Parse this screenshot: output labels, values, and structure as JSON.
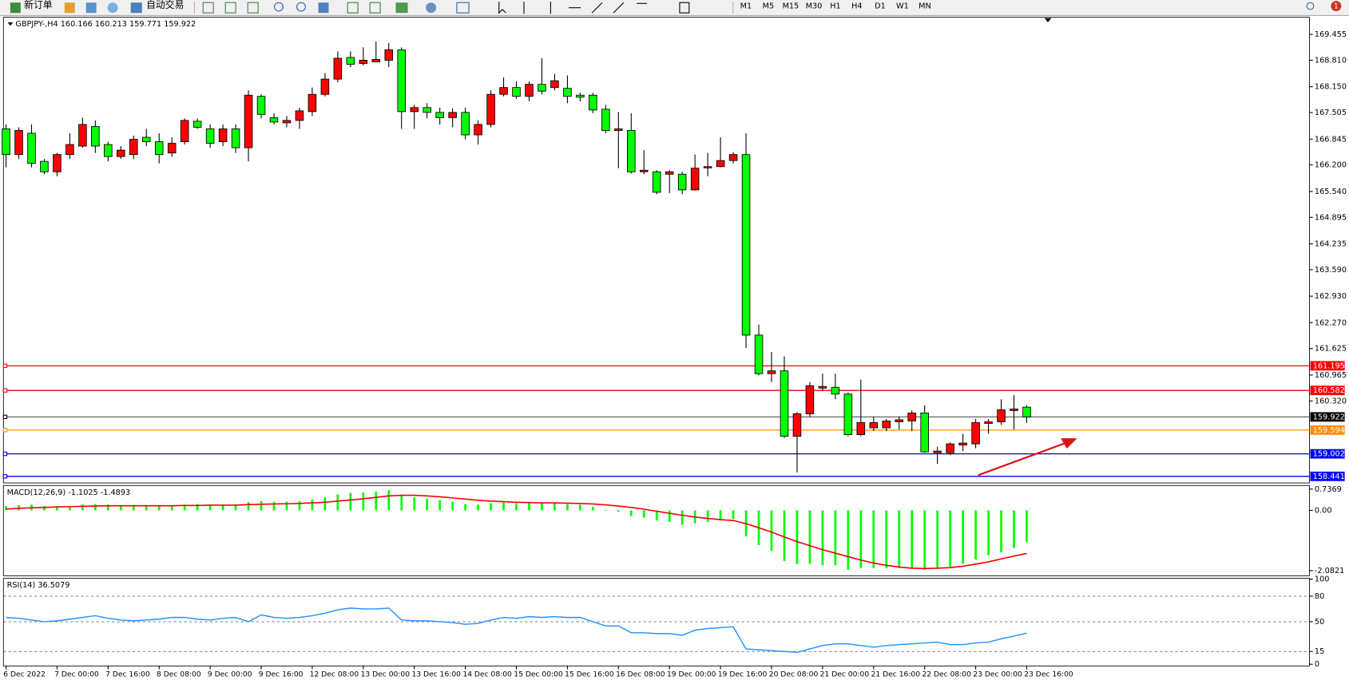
{
  "toolbar": {
    "new_order": "新订单",
    "auto_trading": "自动交易",
    "timeframes": [
      "M1",
      "M5",
      "M15",
      "M30",
      "H1",
      "H4",
      "D1",
      "W1",
      "MN"
    ],
    "badge": "1"
  },
  "chart_data": [
    {
      "type": "candlestick",
      "title": "GBPJPY-,H4  160.166 160.213 159.771 159.922",
      "categories": [
        "6 Dec 2022",
        null,
        null,
        null,
        "7 Dec 00:00",
        null,
        null,
        null,
        "7 Dec 16:00",
        null,
        null,
        null,
        "8 Dec 08:00",
        null,
        null,
        null,
        "9 Dec 00:00",
        null,
        null,
        null,
        "9 Dec 16:00",
        null,
        null,
        null,
        "12 Dec 08:00",
        null,
        null,
        null,
        "13 Dec 00:00",
        null,
        null,
        null,
        "13 Dec 16:00",
        null,
        null,
        null,
        "14 Dec 08:00",
        null,
        null,
        null,
        "15 Dec 00:00",
        null,
        null,
        null,
        "15 Dec 16:00",
        null,
        null,
        null,
        "16 Dec 08:00",
        null,
        null,
        null,
        "19 Dec 00:00",
        null,
        null,
        null,
        "19 Dec 16:00",
        null,
        null,
        null,
        "20 Dec 08:00",
        null,
        null,
        null,
        "21 Dec 00:00",
        null,
        null,
        null,
        "21 Dec 16:00",
        null,
        null,
        null,
        "22 Dec 08:00",
        null,
        null,
        null,
        "23 Dec 00:00",
        null,
        null,
        null,
        "23 Dec 16:00"
      ],
      "open": [
        167.1,
        166.46,
        166.99,
        166.29,
        166.03,
        166.46,
        166.67,
        167.16,
        166.71,
        166.41,
        166.46,
        166.89,
        166.78,
        166.5,
        166.78,
        167.29,
        167.1,
        166.78,
        167.1,
        166.63,
        167.91,
        167.38,
        167.25,
        167.31,
        167.53,
        167.96,
        168.34,
        168.88,
        168.73,
        168.77,
        168.81,
        169.07,
        167.53,
        167.63,
        167.51,
        167.38,
        167.51,
        166.95,
        167.21,
        167.96,
        168.13,
        167.91,
        168.21,
        168.13,
        168.11,
        167.94,
        167.94,
        167.59,
        167.06,
        167.06,
        166.03,
        166.03,
        165.97,
        165.97,
        165.58,
        166.14,
        166.16,
        166.31,
        166.46,
        161.96,
        161.0,
        161.07,
        159.44,
        160.0,
        160.64,
        160.66,
        160.49,
        159.48,
        159.65,
        159.65,
        159.8,
        159.82,
        160.02,
        159.03,
        159.03,
        159.22,
        159.25,
        159.76,
        159.8,
        160.08,
        160.166
      ],
      "high": [
        167.21,
        167.14,
        167.21,
        166.35,
        166.5,
        166.99,
        167.38,
        167.31,
        166.78,
        166.67,
        166.93,
        167.1,
        166.99,
        166.89,
        167.36,
        167.36,
        167.21,
        167.21,
        167.21,
        168.06,
        167.96,
        167.49,
        167.42,
        167.63,
        168.13,
        168.49,
        169.03,
        169.03,
        169.13,
        169.28,
        169.24,
        169.13,
        167.7,
        167.74,
        167.63,
        167.61,
        167.63,
        167.31,
        168.06,
        168.38,
        168.28,
        168.28,
        168.86,
        168.47,
        168.43,
        168.0,
        168.0,
        167.7,
        167.52,
        167.49,
        166.57,
        166.07,
        166.07,
        166.03,
        166.46,
        166.5,
        166.89,
        166.52,
        166.99,
        162.22,
        161.54,
        161.43,
        160.04,
        160.79,
        161.0,
        161.0,
        160.53,
        160.85,
        159.93,
        159.87,
        159.93,
        160.08,
        160.21,
        159.18,
        159.29,
        159.5,
        159.87,
        159.87,
        160.36,
        160.47,
        160.213
      ],
      "low": [
        166.14,
        166.35,
        166.14,
        165.97,
        165.92,
        166.35,
        166.63,
        166.5,
        166.29,
        166.35,
        166.35,
        166.67,
        166.24,
        166.41,
        166.71,
        167.1,
        166.63,
        166.67,
        166.5,
        166.29,
        167.36,
        167.21,
        167.14,
        167.1,
        167.42,
        167.91,
        168.26,
        168.64,
        168.68,
        168.77,
        168.64,
        167.1,
        167.1,
        167.36,
        167.21,
        167.14,
        166.84,
        166.71,
        167.14,
        167.91,
        167.85,
        167.79,
        167.96,
        168.06,
        167.74,
        167.79,
        167.49,
        166.99,
        166.12,
        165.99,
        165.97,
        165.47,
        165.5,
        165.47,
        165.56,
        165.92,
        166.14,
        166.24,
        161.64,
        160.96,
        160.79,
        159.4,
        158.54,
        159.93,
        160.57,
        160.36,
        159.44,
        159.44,
        159.57,
        159.57,
        159.61,
        159.57,
        159.03,
        158.75,
        158.97,
        159.07,
        159.14,
        159.5,
        159.72,
        159.61,
        159.771
      ],
      "close": [
        166.46,
        167.06,
        166.24,
        166.03,
        166.46,
        166.71,
        167.21,
        166.67,
        166.41,
        166.57,
        166.84,
        166.78,
        166.46,
        166.74,
        167.31,
        167.14,
        166.74,
        167.1,
        166.63,
        167.94,
        167.46,
        167.27,
        167.31,
        167.55,
        167.96,
        168.34,
        168.86,
        168.71,
        168.81,
        168.83,
        169.07,
        167.53,
        167.63,
        167.51,
        167.38,
        167.51,
        166.95,
        167.21,
        167.96,
        168.13,
        167.91,
        168.21,
        168.04,
        168.3,
        167.91,
        167.89,
        167.57,
        167.06,
        167.1,
        166.03,
        166.07,
        165.52,
        166.03,
        165.58,
        166.12,
        166.16,
        166.31,
        166.46,
        161.96,
        161.0,
        161.07,
        159.44,
        160.0,
        160.7,
        160.68,
        160.49,
        159.48,
        159.78,
        159.78,
        159.82,
        159.85,
        160.02,
        159.05,
        159.07,
        159.25,
        159.27,
        159.78,
        159.8,
        160.1,
        160.12,
        159.922
      ],
      "up_color": "#ff0000",
      "down_color": "#00ff00",
      "ylim": [
        158.277,
        169.883
      ],
      "yticks": [
        169.455,
        {
          "value": 168.81,
          "label": "168.810"
        },
        {
          "value": 168.15,
          "label": "168.150"
        },
        167.505,
        166.845,
        {
          "value": 166.2,
          "label": "166.200"
        },
        {
          "value": 165.54,
          "label": "165.540"
        },
        164.895,
        164.235,
        {
          "value": 163.59,
          "label": "163.590"
        },
        {
          "value": 162.93,
          "label": "162.930"
        },
        {
          "value": 162.27,
          "label": "162.270"
        },
        161.625,
        160.965,
        {
          "value": 160.32,
          "label": "160.320"
        }
      ],
      "levels": [
        {
          "value": 161.195,
          "color": "#ff0000"
        },
        {
          "value": 160.582,
          "color": "#ff0000"
        },
        {
          "value": 159.922,
          "color": "#000000"
        },
        {
          "value": 159.594,
          "color": "#ff8c00"
        },
        {
          "value": 159.002,
          "color": "#0000ff"
        },
        {
          "value": 158.441,
          "color": "#0000ff"
        }
      ]
    },
    {
      "type": "macd",
      "title": "MACD(12,26,9) -1.1025 -1.4893",
      "histogram": {
        "color": "#00ff00",
        "values": [
          0.15,
          0.18,
          0.2,
          0.15,
          0.12,
          0.15,
          0.2,
          0.22,
          0.2,
          0.18,
          0.18,
          0.18,
          0.15,
          0.15,
          0.2,
          0.22,
          0.2,
          0.2,
          0.18,
          0.28,
          0.32,
          0.3,
          0.3,
          0.32,
          0.38,
          0.45,
          0.55,
          0.6,
          0.62,
          0.65,
          0.7,
          0.52,
          0.45,
          0.4,
          0.35,
          0.3,
          0.22,
          0.2,
          0.25,
          0.28,
          0.25,
          0.25,
          0.25,
          0.25,
          0.22,
          0.2,
          0.12,
          0.02,
          -0.05,
          -0.2,
          -0.25,
          -0.35,
          -0.4,
          -0.5,
          -0.45,
          -0.4,
          -0.35,
          -0.3,
          -0.9,
          -1.2,
          -1.4,
          -1.75,
          -1.85,
          -1.85,
          -1.9,
          -1.9,
          -2.05,
          -2.0,
          -2.0,
          -2.0,
          -2.0,
          -2.0,
          -2.05,
          -2.0,
          -1.95,
          -1.85,
          -1.7,
          -1.55,
          -1.45,
          -1.3,
          -1.1025
        ]
      },
      "signal": {
        "color": "#ff0000",
        "values": [
          0.05,
          0.07,
          0.09,
          0.1,
          0.12,
          0.13,
          0.14,
          0.15,
          0.16,
          0.16,
          0.16,
          0.16,
          0.16,
          0.16,
          0.17,
          0.17,
          0.18,
          0.18,
          0.18,
          0.2,
          0.21,
          0.22,
          0.23,
          0.24,
          0.26,
          0.28,
          0.32,
          0.36,
          0.4,
          0.45,
          0.5,
          0.52,
          0.52,
          0.5,
          0.47,
          0.43,
          0.39,
          0.35,
          0.32,
          0.3,
          0.28,
          0.27,
          0.26,
          0.26,
          0.25,
          0.24,
          0.22,
          0.19,
          0.15,
          0.1,
          0.04,
          -0.03,
          -0.1,
          -0.17,
          -0.23,
          -0.28,
          -0.32,
          -0.35,
          -0.46,
          -0.6,
          -0.75,
          -0.92,
          -1.08,
          -1.22,
          -1.36,
          -1.48,
          -1.6,
          -1.72,
          -1.82,
          -1.9,
          -1.96,
          -2.0,
          -2.01,
          -2.0,
          -1.98,
          -1.93,
          -1.86,
          -1.78,
          -1.68,
          -1.58,
          -1.4893
        ]
      },
      "ylim": [
        -2.26,
        0.86
      ],
      "yticks": [
        0.7369,
        {
          "value": 0,
          "label": "0.00"
        },
        -2.0821
      ]
    },
    {
      "type": "line",
      "title": "RSI(14) 36.5079",
      "series": [
        {
          "color": "#1e90ff",
          "values": [
            55,
            54,
            52,
            50,
            51,
            53,
            55,
            57,
            54,
            52,
            51,
            52,
            53,
            55,
            55,
            53,
            52,
            54,
            55,
            50,
            58,
            55,
            54,
            55,
            57,
            60,
            64,
            66,
            65,
            65,
            66,
            52,
            51,
            51,
            50,
            49,
            47,
            48,
            52,
            55,
            54,
            56,
            55,
            56,
            55,
            55,
            50,
            45,
            45,
            37,
            37,
            36,
            36,
            34,
            40,
            42,
            43,
            44,
            18,
            17,
            16,
            15,
            14,
            18,
            22,
            24,
            24,
            22,
            20,
            22,
            23,
            24,
            25,
            26,
            23,
            23,
            25,
            26,
            30,
            33,
            36.5079
          ]
        }
      ],
      "ylim": [
        0,
        100
      ],
      "yticks": [
        100,
        80,
        50,
        15,
        0
      ]
    }
  ]
}
